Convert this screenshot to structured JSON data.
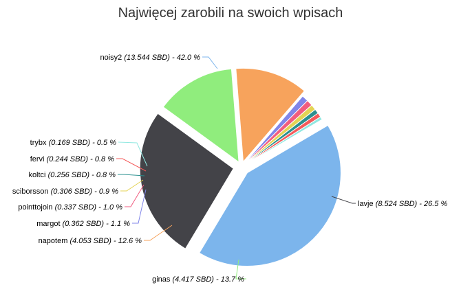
{
  "chart_data": {
    "type": "pie",
    "title": "Najwięcej zarobili na swoich wpisach",
    "slices": [
      {
        "name": "noisy2",
        "value": 13.544,
        "detail": "(13.544 SBD) - 42.0 %",
        "color": "#7cb5ec"
      },
      {
        "name": "lavje",
        "value": 8.524,
        "detail": "(8.524 SBD) - 26.5 %",
        "color": "#434348"
      },
      {
        "name": "ginas",
        "value": 4.417,
        "detail": "(4.417 SBD) - 13.7 %",
        "color": "#90ed7d"
      },
      {
        "name": "napotem",
        "value": 4.053,
        "detail": "(4.053 SBD) - 12.6 %",
        "color": "#f7a35c"
      },
      {
        "name": "margot",
        "value": 0.362,
        "detail": "(0.362 SBD) - 1.1 %",
        "color": "#8085e9"
      },
      {
        "name": "pointtojoin",
        "value": 0.337,
        "detail": "(0.337 SBD) - 1.0 %",
        "color": "#f15c80"
      },
      {
        "name": "sciborsson",
        "value": 0.306,
        "detail": "(0.306 SBD) - 0.9 %",
        "color": "#e4d354"
      },
      {
        "name": "koltci",
        "value": 0.256,
        "detail": "(0.256 SBD) - 0.8 %",
        "color": "#2b908f"
      },
      {
        "name": "fervi",
        "value": 0.244,
        "detail": "(0.244 SBD) - 0.8 %",
        "color": "#f45b5b"
      },
      {
        "name": "trybx",
        "value": 0.169,
        "detail": "(0.169 SBD) - 0.5 %",
        "color": "#91e8e1"
      }
    ]
  }
}
